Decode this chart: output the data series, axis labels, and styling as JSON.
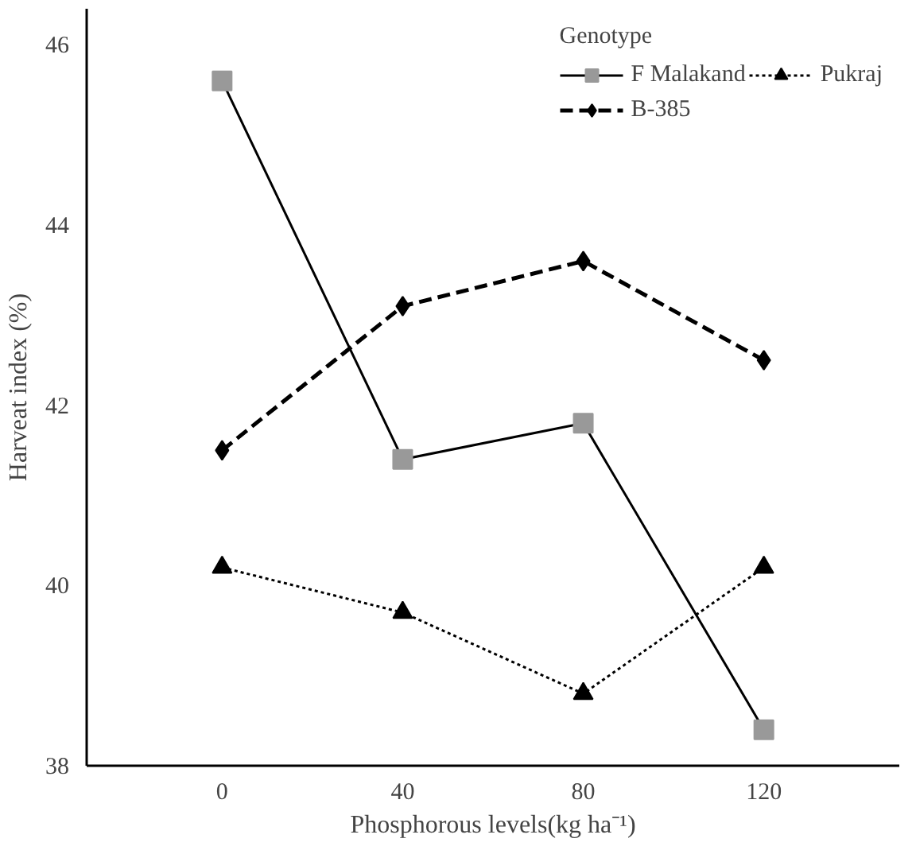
{
  "chart_data": {
    "type": "line",
    "xlabel": "Phosphorous levels(kg ha⁻¹)",
    "ylabel": "Harveat index (%)",
    "legend_title": "Genotype",
    "categories": [
      "0",
      "40",
      "80",
      "120"
    ],
    "series": [
      {
        "name": "F Malakand",
        "color": "#999999",
        "marker": "square",
        "line_style": "solid",
        "values": [
          45.6,
          41.4,
          41.8,
          38.4
        ]
      },
      {
        "name": "B-385",
        "color": "#000000",
        "marker": "diamond",
        "line_style": "dashed",
        "values": [
          41.5,
          43.1,
          43.6,
          42.5
        ]
      },
      {
        "name": "Pukraj",
        "color": "#000000",
        "marker": "triangle",
        "line_style": "dotted",
        "values": [
          40.2,
          39.7,
          38.8,
          40.2
        ]
      }
    ],
    "ylim": [
      38,
      46.4
    ],
    "yticks": [
      38,
      40,
      42,
      44,
      46
    ],
    "grid": false,
    "legend": "top right"
  }
}
